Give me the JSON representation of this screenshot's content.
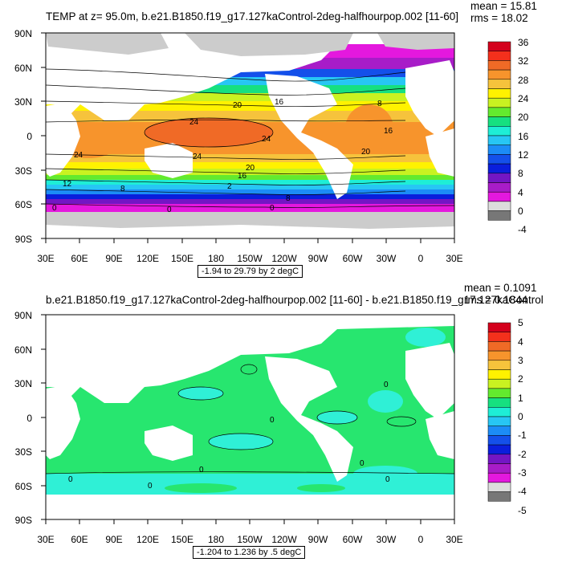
{
  "top_panel": {
    "title": "TEMP at z=  95.0m, b.e21.B1850.f19_g17.127kaControl-2deg-halfhourpop.002 [11-60]",
    "mean_label": "mean = 15.81",
    "rms_label": "rms = 18.02",
    "range_label": "-1.94 to 29.79 by 2 degC",
    "lat_labels": [
      "90N",
      "60N",
      "30N",
      "0",
      "30S",
      "60S",
      "90S"
    ],
    "lon_labels": [
      "30E",
      "60E",
      "90E",
      "120E",
      "150E",
      "180",
      "150W",
      "120W",
      "90W",
      "60W",
      "30W",
      "0",
      "30E"
    ],
    "colorbar_labels": [
      "36",
      "32",
      "28",
      "24",
      "20",
      "16",
      "12",
      "8",
      "4",
      "0",
      "-4"
    ],
    "colorbar_colors": [
      "#d4001c",
      "#f4301c",
      "#f06a26",
      "#f7942c",
      "#f6c33c",
      "#fff200",
      "#c9f221",
      "#63ea2e",
      "#16e080",
      "#1eeed6",
      "#27c6f4",
      "#1c8cf6",
      "#1450ea",
      "#0a1edc",
      "#7316c4",
      "#a81cc8",
      "#e418de",
      "#dcdcdc",
      "#777777"
    ],
    "contour_labels": [
      "20",
      "16",
      "24",
      "24",
      "24",
      "24",
      "20",
      "16",
      "12",
      "8",
      "2",
      "8",
      "0",
      "0",
      "0",
      "16",
      "8",
      "20"
    ]
  },
  "bottom_panel": {
    "title": "b.e21.B1850.f19_g17.127kaControl-2deg-halfhourpop.002 [11-60] - b.e21.B1850.f19_g17.127kaControl",
    "mean_label": "mean = 0.1091",
    "rms_label": "rms = 0.1844",
    "range_label": "-1.204 to 1.236 by .5 degC",
    "lat_labels": [
      "90N",
      "60N",
      "30N",
      "0",
      "30S",
      "60S",
      "90S"
    ],
    "lon_labels": [
      "30E",
      "60E",
      "90E",
      "120E",
      "150E",
      "180",
      "150W",
      "120W",
      "90W",
      "60W",
      "30W",
      "0",
      "30E"
    ],
    "colorbar_labels": [
      "5",
      "4",
      "3",
      "2",
      "1",
      "0",
      "-1",
      "-2",
      "-3",
      "-4",
      "-5"
    ],
    "colorbar_colors": [
      "#d4001c",
      "#f4301c",
      "#f06a26",
      "#f7942c",
      "#f6c33c",
      "#fff200",
      "#c9f221",
      "#63ea2e",
      "#16e080",
      "#1eeed6",
      "#27c6f4",
      "#1c8cf6",
      "#1450ea",
      "#0a1edc",
      "#7316c4",
      "#a81cc8",
      "#e418de",
      "#dcdcdc",
      "#777777"
    ],
    "contour_labels": [
      "0",
      "0",
      "0",
      "0",
      "0",
      "0",
      "0"
    ]
  },
  "colors": {
    "land": "#ffffff",
    "ice": "#cccccc",
    "diff_main": "#27e66f",
    "diff_neg": "#2ff0d6"
  }
}
